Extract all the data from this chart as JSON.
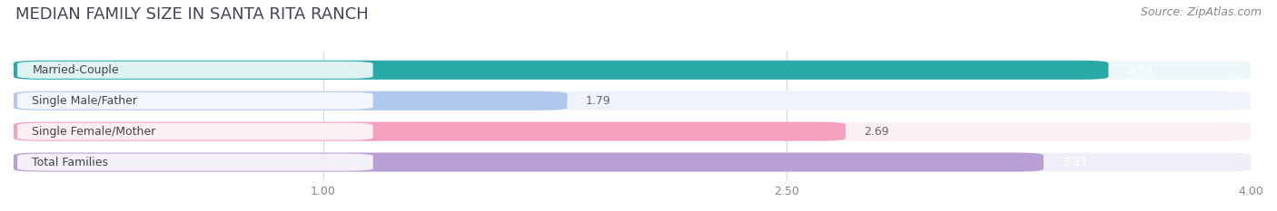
{
  "title": "MEDIAN FAMILY SIZE IN SANTA RITA RANCH",
  "source": "Source: ZipAtlas.com",
  "categories": [
    "Married-Couple",
    "Single Male/Father",
    "Single Female/Mother",
    "Total Families"
  ],
  "values": [
    3.54,
    1.79,
    2.69,
    3.33
  ],
  "bar_colors": [
    "#29aaa9",
    "#b0c8ed",
    "#f5a0bc",
    "#b89fd4"
  ],
  "bar_bg_colors": [
    "#eff8f8",
    "#eff3fb",
    "#fdf0f5",
    "#f2eef8"
  ],
  "value_text_colors": [
    "#ffffff",
    "#666666",
    "#666666",
    "#ffffff"
  ],
  "xlim": [
    0,
    4.0
  ],
  "xmin": 0.0,
  "xticks": [
    1.0,
    2.5,
    4.0
  ],
  "xtick_labels": [
    "1.00",
    "2.50",
    "4.00"
  ],
  "title_fontsize": 13,
  "source_fontsize": 9,
  "label_fontsize": 9,
  "value_fontsize": 9,
  "bar_height": 0.62,
  "figsize": [
    14.06,
    2.33
  ],
  "dpi": 100
}
